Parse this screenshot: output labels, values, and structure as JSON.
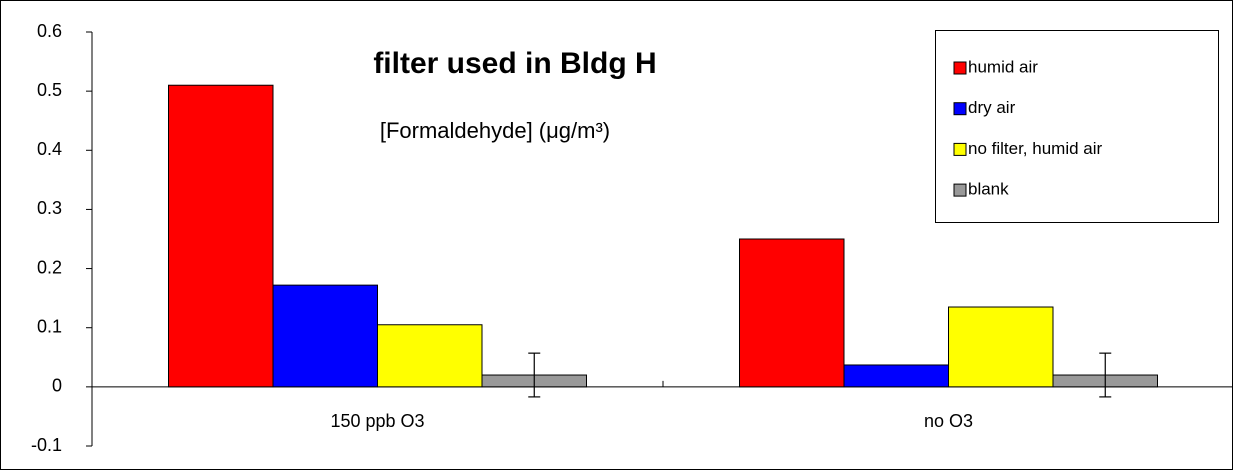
{
  "chart_data": {
    "type": "bar",
    "title": "filter used in Bldg H",
    "subtitle": "[Formaldehyde] (μg/m³)",
    "categories": [
      "150 ppb O3",
      "no O3"
    ],
    "series": [
      {
        "name": "humid air",
        "color": "#ff0000",
        "values": [
          0.51,
          0.25
        ]
      },
      {
        "name": "dry air",
        "color": "#0000ff",
        "values": [
          0.172,
          0.037
        ]
      },
      {
        "name": "no filter, humid air",
        "color": "#ffff00",
        "values": [
          0.105,
          0.135
        ]
      },
      {
        "name": "blank",
        "color": "#999999",
        "values": [
          0.02,
          0.02
        ],
        "errors": [
          0.037,
          0.037
        ]
      }
    ],
    "ylim": [
      -0.1,
      0.6
    ],
    "yticks": [
      -0.1,
      0,
      0.1,
      0.2,
      0.3,
      0.4,
      0.5,
      0.6
    ],
    "grid": false,
    "legend": "top-right"
  }
}
